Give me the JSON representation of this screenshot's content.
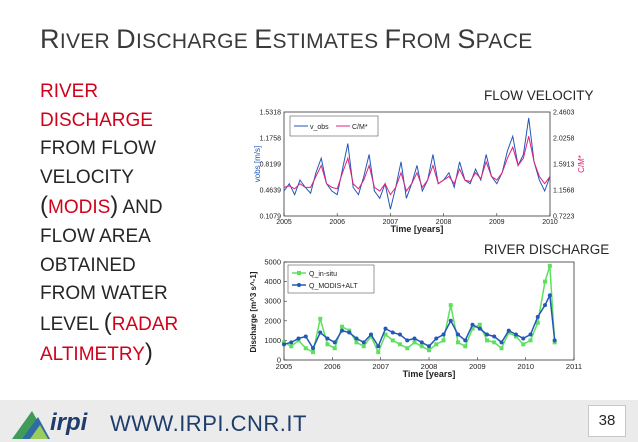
{
  "slide": {
    "title_first_caps": [
      "R",
      "D",
      "E",
      "F",
      "S"
    ],
    "title_rest": [
      "IVER ",
      "ISCHARGE ",
      "STIMATES ",
      "ROM ",
      "PACE"
    ],
    "left": {
      "l1": "RIVER",
      "l2": "DISCHARGE",
      "l3": "FROM FLOW",
      "l4": "VELOCITY",
      "l5_open": "(",
      "l5_modis": "MODIS",
      "l5_close": ")",
      "l5_and": " AND",
      "l6": "FLOW AREA",
      "l7": "OBTAINED",
      "l8": "FROM WATER",
      "l9_level": "LEVEL ",
      "l9_open": "(",
      "l9_radar": "RADAR",
      "l10_alt": "ALTIMETRY",
      "l10_close": ")"
    },
    "caption_top": "FLOW VELOCITY",
    "caption_bottom": "RIVER DISCHARGE",
    "footer_url": "WWW.IRPI.CNR.IT",
    "logo_text": "irpi",
    "page_number": "38",
    "colors": {
      "accent_red": "#d0021b",
      "blue": "#2457b8",
      "magenta": "#e0207a",
      "green": "#5ee05e",
      "navy": "#1f3d6b"
    }
  },
  "chart_data": [
    {
      "type": "line",
      "xlabel": "Time [years]",
      "ylabel_left": "vobs [m/s]",
      "ylabel_right": "C/M*",
      "xlim": [
        2005,
        2010
      ],
      "x_ticks": [
        "2005",
        "2006",
        "2007",
        "2008",
        "2009",
        "2010"
      ],
      "y_ticks_left": [
        "0.1079",
        "0.4639",
        "0.8199",
        "1.1758",
        "1.5318"
      ],
      "ylim_left": [
        0.1079,
        1.5318
      ],
      "y_ticks_right": [
        "0.7223",
        "1.1568",
        "1.5913",
        "2.0258",
        "2.4603"
      ],
      "legend": [
        "v_obs",
        "C/M*"
      ],
      "legend_position": "top-left",
      "series": [
        {
          "name": "v_obs",
          "x": [
            2005.0,
            2005.1,
            2005.2,
            2005.3,
            2005.4,
            2005.5,
            2005.6,
            2005.7,
            2005.8,
            2005.9,
            2006.0,
            2006.1,
            2006.2,
            2006.3,
            2006.4,
            2006.5,
            2006.6,
            2006.7,
            2006.8,
            2006.9,
            2007.0,
            2007.1,
            2007.2,
            2007.3,
            2007.4,
            2007.5,
            2007.6,
            2007.7,
            2007.8,
            2007.9,
            2008.0,
            2008.1,
            2008.2,
            2008.3,
            2008.4,
            2008.5,
            2008.6,
            2008.7,
            2008.8,
            2008.9,
            2009.0,
            2009.1,
            2009.2,
            2009.3,
            2009.4,
            2009.5,
            2009.6,
            2009.7,
            2009.8,
            2009.9,
            2010.0
          ],
          "values": [
            0.45,
            0.55,
            0.4,
            0.6,
            0.5,
            0.42,
            0.7,
            0.9,
            0.55,
            0.45,
            0.4,
            0.75,
            1.1,
            0.5,
            0.4,
            0.65,
            0.95,
            0.45,
            0.35,
            0.55,
            0.2,
            0.5,
            0.85,
            0.35,
            0.55,
            0.8,
            0.45,
            0.6,
            0.95,
            0.55,
            0.6,
            0.7,
            0.5,
            0.85,
            0.6,
            0.55,
            0.75,
            0.6,
            0.95,
            0.65,
            0.55,
            0.7,
            1.0,
            1.2,
            0.8,
            0.95,
            1.45,
            0.85,
            0.6,
            0.45,
            0.65
          ]
        },
        {
          "name": "C/M*",
          "x": [
            2005.0,
            2005.1,
            2005.2,
            2005.3,
            2005.4,
            2005.5,
            2005.6,
            2005.7,
            2005.8,
            2005.9,
            2006.0,
            2006.1,
            2006.2,
            2006.3,
            2006.4,
            2006.5,
            2006.6,
            2006.7,
            2006.8,
            2006.9,
            2007.0,
            2007.1,
            2007.2,
            2007.3,
            2007.4,
            2007.5,
            2007.6,
            2007.7,
            2007.8,
            2007.9,
            2008.0,
            2008.1,
            2008.2,
            2008.3,
            2008.4,
            2008.5,
            2008.6,
            2008.7,
            2008.8,
            2008.9,
            2009.0,
            2009.1,
            2009.2,
            2009.3,
            2009.4,
            2009.5,
            2009.6,
            2009.7,
            2009.8,
            2009.9,
            2010.0
          ],
          "values": [
            0.5,
            0.52,
            0.48,
            0.55,
            0.5,
            0.5,
            0.65,
            0.8,
            0.55,
            0.5,
            0.48,
            0.7,
            0.9,
            0.55,
            0.48,
            0.6,
            0.8,
            0.5,
            0.45,
            0.55,
            0.4,
            0.5,
            0.7,
            0.45,
            0.55,
            0.7,
            0.5,
            0.6,
            0.8,
            0.55,
            0.6,
            0.65,
            0.55,
            0.75,
            0.6,
            0.58,
            0.7,
            0.62,
            0.85,
            0.65,
            0.6,
            0.7,
            0.9,
            1.05,
            0.8,
            0.9,
            1.2,
            0.85,
            0.65,
            0.55,
            0.65
          ]
        }
      ]
    },
    {
      "type": "line",
      "xlabel": "Time [years]",
      "ylabel": "Discharge [m^3 s^-1]",
      "xlim": [
        2005,
        2011
      ],
      "ylim": [
        0,
        5000
      ],
      "x_ticks": [
        "2005",
        "2006",
        "2007",
        "2008",
        "2009",
        "2010",
        "2011"
      ],
      "y_ticks": [
        "0",
        "1000",
        "2000",
        "3000",
        "4000",
        "5000"
      ],
      "legend": [
        "Q_in-situ",
        "Q_MODIS+ALT"
      ],
      "legend_position": "top-left",
      "series": [
        {
          "name": "Q_in-situ",
          "x": [
            2005.0,
            2005.15,
            2005.3,
            2005.45,
            2005.6,
            2005.75,
            2005.9,
            2006.05,
            2006.2,
            2006.35,
            2006.5,
            2006.65,
            2006.8,
            2006.95,
            2007.1,
            2007.25,
            2007.4,
            2007.55,
            2007.7,
            2007.85,
            2008.0,
            2008.15,
            2008.3,
            2008.45,
            2008.6,
            2008.75,
            2008.9,
            2009.05,
            2009.2,
            2009.35,
            2009.5,
            2009.65,
            2009.8,
            2009.95,
            2010.1,
            2010.25,
            2010.4,
            2010.5,
            2010.6
          ],
          "values": [
            900,
            700,
            1000,
            600,
            400,
            2100,
            800,
            600,
            1700,
            1500,
            900,
            700,
            1200,
            400,
            1300,
            1000,
            800,
            600,
            900,
            700,
            500,
            800,
            1000,
            2800,
            900,
            700,
            1600,
            1800,
            1000,
            900,
            600,
            1400,
            1200,
            800,
            1000,
            1900,
            4000,
            4800,
            900
          ]
        },
        {
          "name": "Q_MODIS+ALT",
          "x": [
            2005.0,
            2005.15,
            2005.3,
            2005.45,
            2005.6,
            2005.75,
            2005.9,
            2006.05,
            2006.2,
            2006.35,
            2006.5,
            2006.65,
            2006.8,
            2006.95,
            2007.1,
            2007.25,
            2007.4,
            2007.55,
            2007.7,
            2007.85,
            2008.0,
            2008.15,
            2008.3,
            2008.45,
            2008.6,
            2008.75,
            2008.9,
            2009.05,
            2009.2,
            2009.35,
            2009.5,
            2009.65,
            2009.8,
            2009.95,
            2010.1,
            2010.25,
            2010.4,
            2010.5,
            2010.6
          ],
          "values": [
            800,
            900,
            1100,
            1200,
            600,
            1400,
            1100,
            900,
            1500,
            1400,
            1100,
            900,
            1300,
            700,
            1600,
            1400,
            1300,
            1000,
            1100,
            900,
            700,
            1100,
            1300,
            2000,
            1300,
            1000,
            1800,
            1600,
            1300,
            1200,
            900,
            1500,
            1300,
            1100,
            1300,
            2200,
            2800,
            3300,
            1000
          ]
        }
      ]
    }
  ]
}
